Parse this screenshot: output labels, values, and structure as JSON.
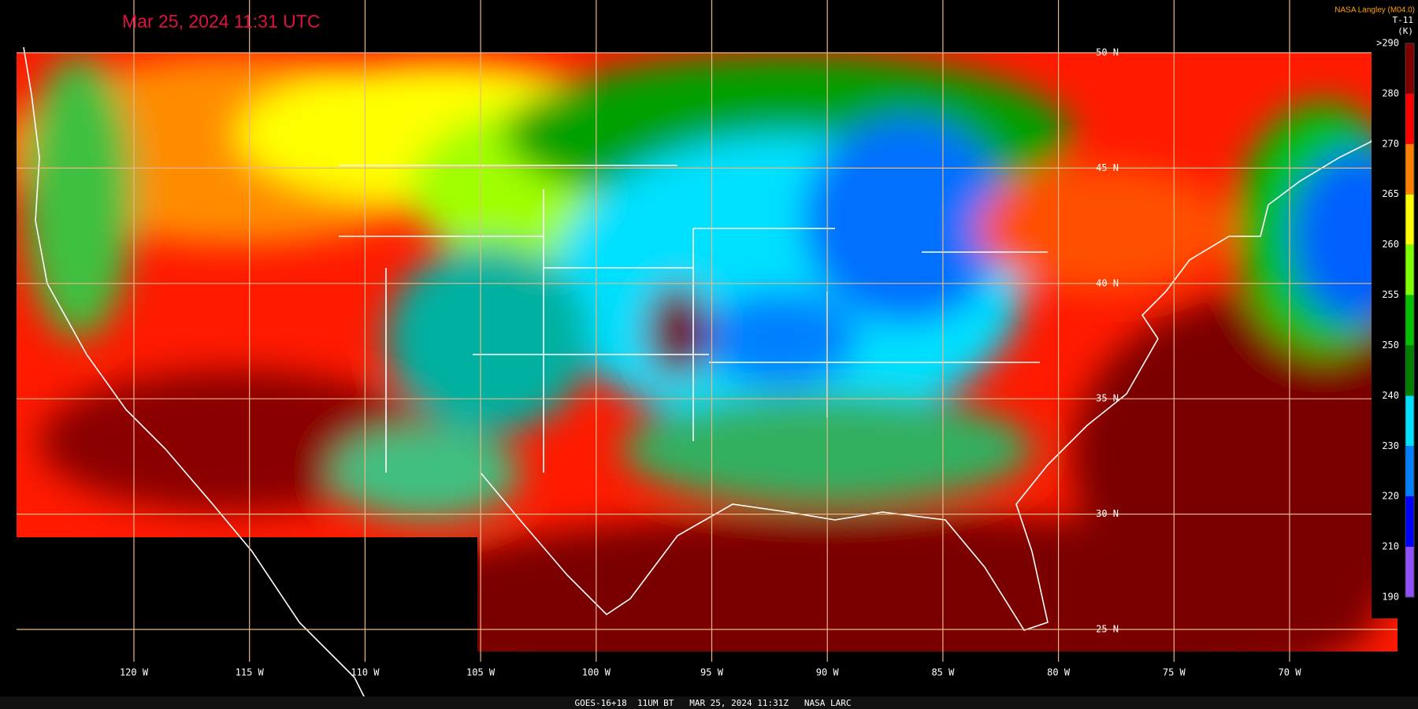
{
  "timestamp": "Mar 25, 2024 11:31 UTC",
  "credit": "NASA Langley (M04.0)",
  "legend": {
    "title": "T-11",
    "unit": "(K)",
    "labels": [
      ">290",
      "280",
      "270",
      "265",
      "260",
      "255",
      "250",
      "240",
      "230",
      "220",
      "210",
      "190"
    ],
    "colors": [
      "#800000",
      "#ff0000",
      "#ff8000",
      "#ffff00",
      "#80ff00",
      "#00c000",
      "#008000",
      "#00e0ff",
      "#0080ff",
      "#0000ff",
      "#9050ff"
    ]
  },
  "latitudes": [
    "50 N",
    "45 N",
    "40 N",
    "35 N",
    "30 N",
    "25 N"
  ],
  "longitudes": [
    "120 W",
    "115 W",
    "110 W",
    "105 W",
    "100 W",
    "95 W",
    "90 W",
    "85 W",
    "80 W",
    "75 W",
    "70 W"
  ],
  "footer": "GOES-16+18  11UM BT   MAR 25, 2024 11:31Z   NASA LARC"
}
